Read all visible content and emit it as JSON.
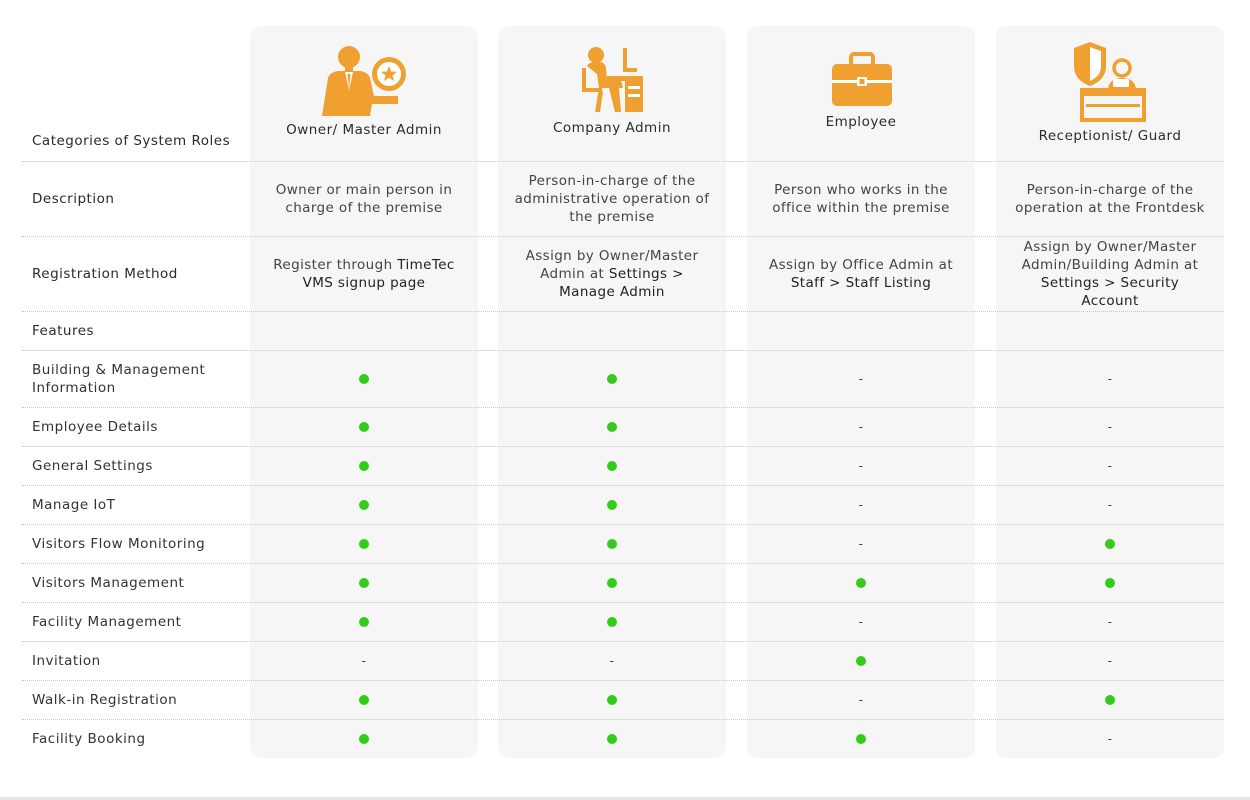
{
  "roles": [
    {
      "name": "Owner/ Master Admin",
      "icon": "owner-admin-icon",
      "description": "Owner or main person in charge of the premise",
      "registration": {
        "plain": "Register through ",
        "bold": "TimeTec VMS signup page"
      }
    },
    {
      "name": "Company Admin",
      "icon": "company-admin-icon",
      "description": "Person-in-charge of the administrative operation of the premise",
      "registration": {
        "plain": "Assign by Owner/Master Admin at ",
        "bold": "Settings > Manage Admin"
      }
    },
    {
      "name": "Employee",
      "icon": "briefcase-icon",
      "description": "Person who works in the office within the premise",
      "registration": {
        "plain": "Assign by Office Admin at ",
        "bold": "Staff > Staff Listing"
      }
    },
    {
      "name": "Receptionist/ Guard",
      "icon": "receptionist-guard-icon",
      "description": "Person-in-charge of the operation at the Frontdesk",
      "registration": {
        "plain": "Assign by Owner/Master Admin/Building Admin at ",
        "bold": "Settings > Security Account"
      }
    }
  ],
  "row_labels": {
    "categories": "Categories of System Roles",
    "description": "Description",
    "registration": "Registration Method",
    "features": "Features"
  },
  "dash_symbol": "-",
  "colors": {
    "accent": "#f0a030",
    "check": "#33cc1a",
    "card_bg": "#f6f6f6"
  },
  "features": [
    {
      "name": "Building & Management Information",
      "access": [
        true,
        true,
        false,
        false
      ]
    },
    {
      "name": "Employee Details",
      "access": [
        true,
        true,
        false,
        false
      ]
    },
    {
      "name": "General Settings",
      "access": [
        true,
        true,
        false,
        false
      ]
    },
    {
      "name": "Manage IoT",
      "access": [
        true,
        true,
        false,
        false
      ]
    },
    {
      "name": "Visitors Flow Monitoring",
      "access": [
        true,
        true,
        false,
        true
      ]
    },
    {
      "name": "Visitors Management",
      "access": [
        true,
        true,
        true,
        true
      ]
    },
    {
      "name": "Facility Management",
      "access": [
        true,
        true,
        false,
        false
      ]
    },
    {
      "name": "Invitation",
      "access": [
        false,
        false,
        true,
        false
      ]
    },
    {
      "name": "Walk-in Registration",
      "access": [
        true,
        true,
        false,
        true
      ]
    },
    {
      "name": "Facility Booking",
      "access": [
        true,
        true,
        true,
        false
      ]
    }
  ]
}
